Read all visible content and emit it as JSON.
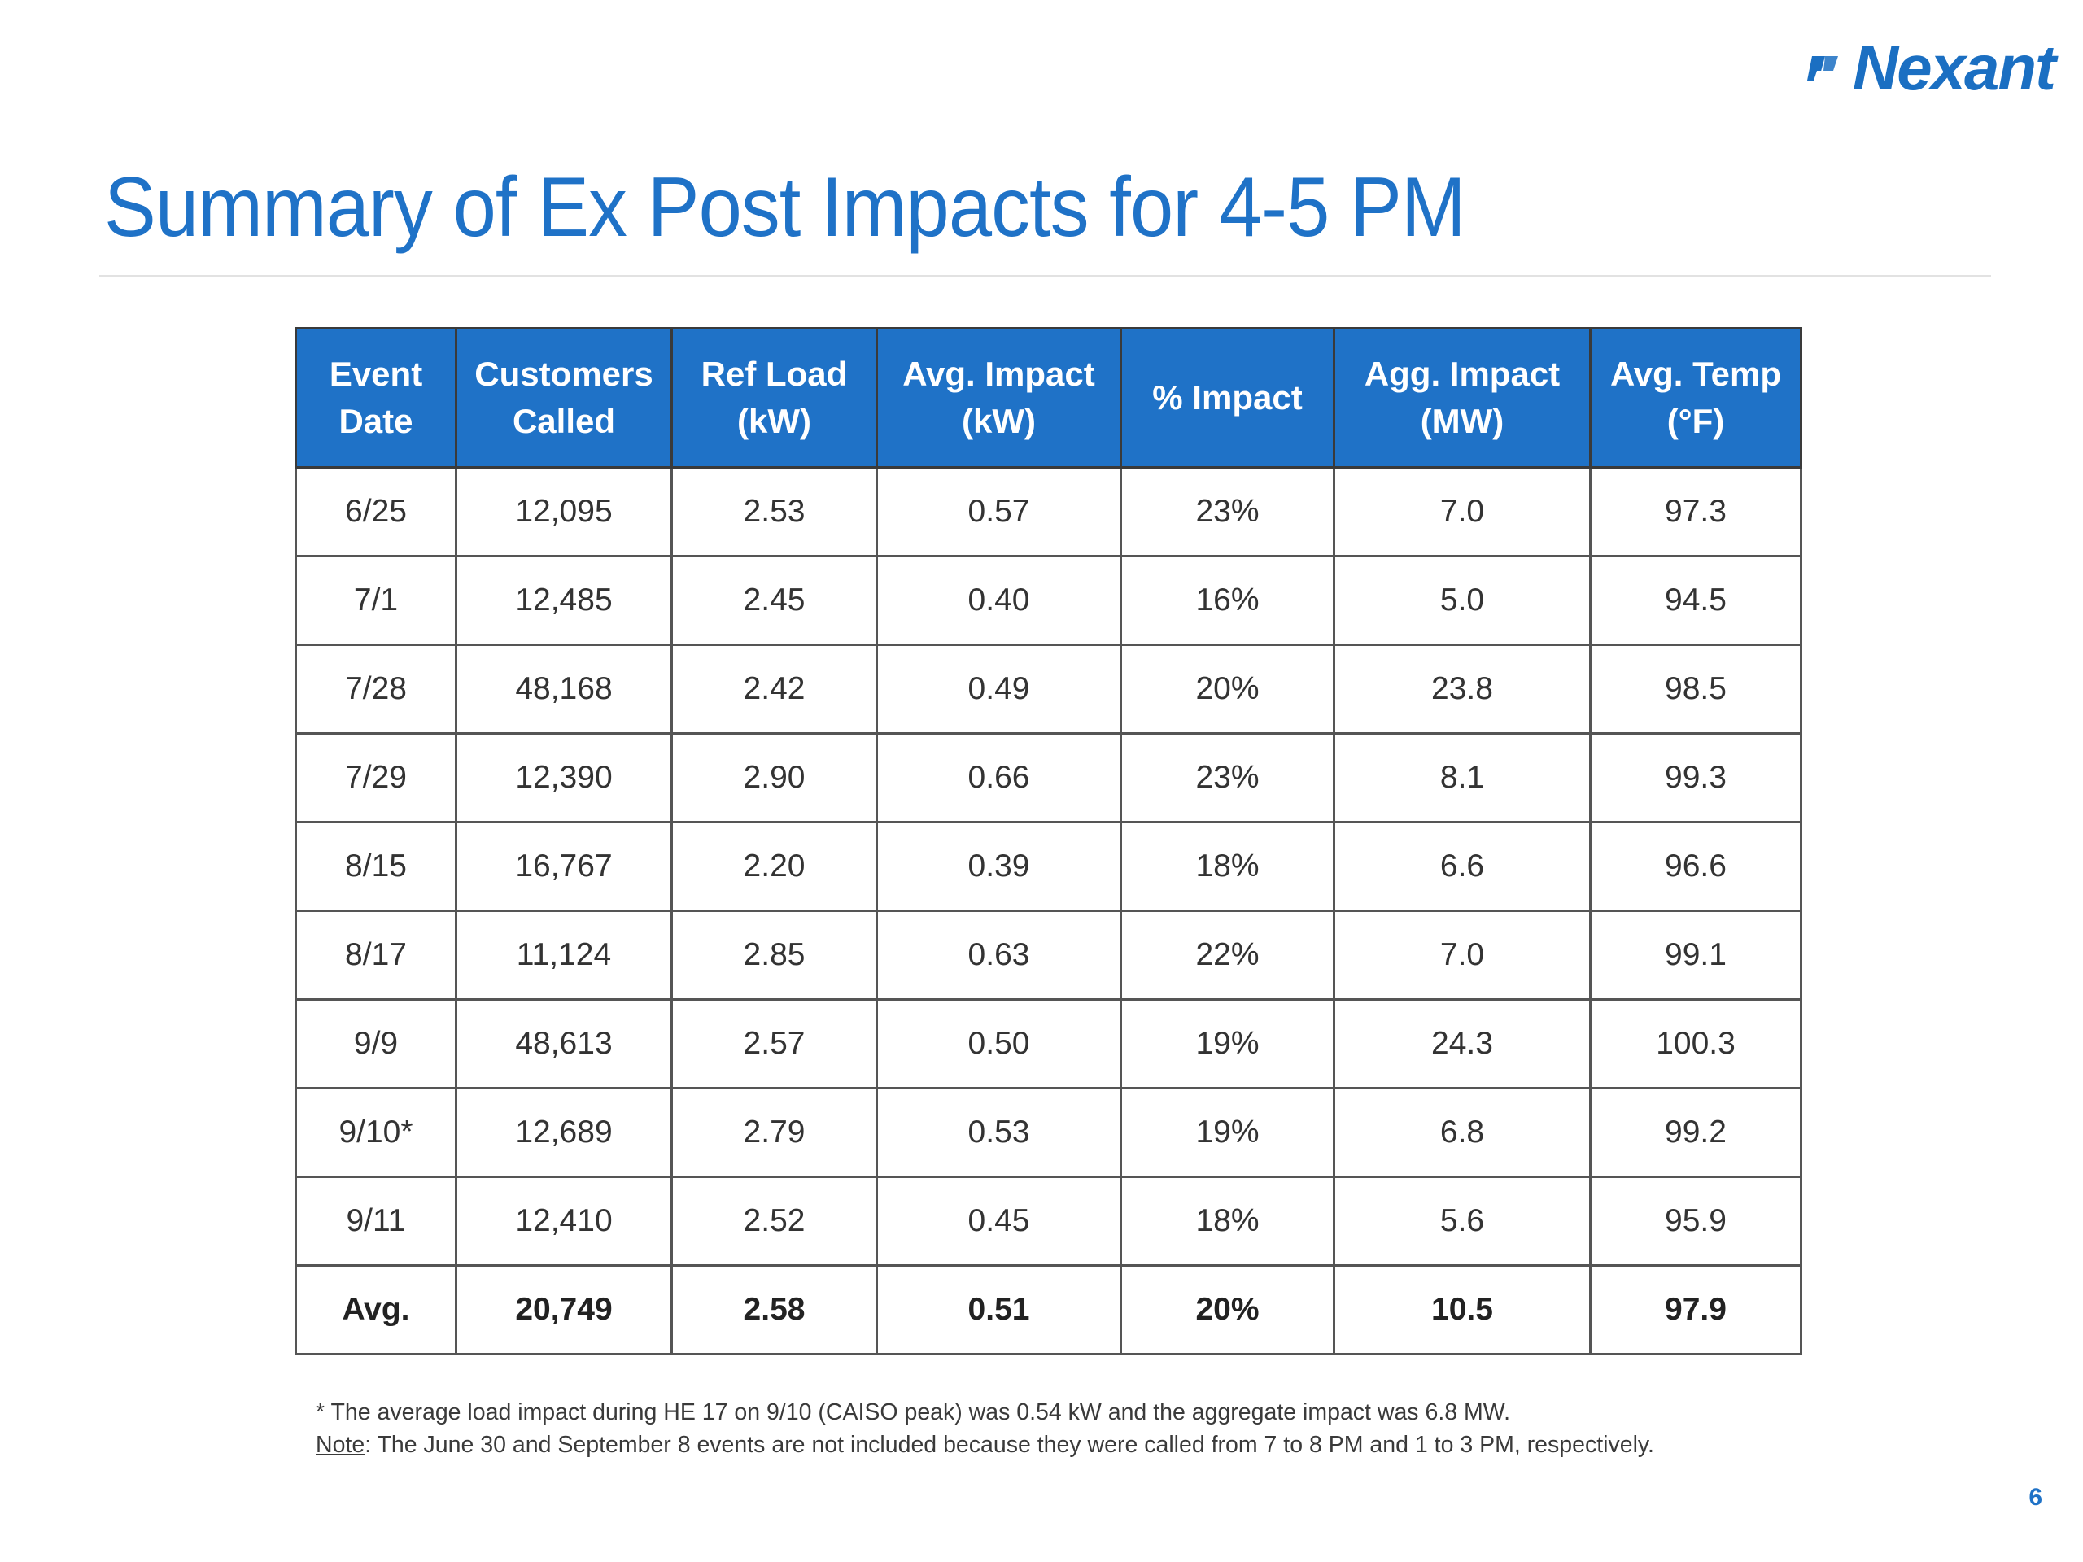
{
  "logo": {
    "text": "Nexant"
  },
  "slide": {
    "title": "Summary of Ex Post Impacts for 4-5 PM",
    "page_number": "6"
  },
  "table": {
    "headers": [
      [
        "Event",
        "Date"
      ],
      [
        "Customers",
        "Called"
      ],
      [
        "Ref Load",
        "(kW)"
      ],
      [
        "Avg. Impact",
        "(kW)"
      ],
      [
        "% Impact"
      ],
      [
        "Agg. Impact",
        "(MW)"
      ],
      [
        "Avg. Temp",
        "(°F)"
      ]
    ],
    "rows": [
      [
        "6/25",
        "12,095",
        "2.53",
        "0.57",
        "23%",
        "7.0",
        "97.3"
      ],
      [
        "7/1",
        "12,485",
        "2.45",
        "0.40",
        "16%",
        "5.0",
        "94.5"
      ],
      [
        "7/28",
        "48,168",
        "2.42",
        "0.49",
        "20%",
        "23.8",
        "98.5"
      ],
      [
        "7/29",
        "12,390",
        "2.90",
        "0.66",
        "23%",
        "8.1",
        "99.3"
      ],
      [
        "8/15",
        "16,767",
        "2.20",
        "0.39",
        "18%",
        "6.6",
        "96.6"
      ],
      [
        "8/17",
        "11,124",
        "2.85",
        "0.63",
        "22%",
        "7.0",
        "99.1"
      ],
      [
        "9/9",
        "48,613",
        "2.57",
        "0.50",
        "19%",
        "24.3",
        "100.3"
      ],
      [
        "9/10*",
        "12,689",
        "2.79",
        "0.53",
        "19%",
        "6.8",
        "99.2"
      ],
      [
        "9/11",
        "12,410",
        "2.52",
        "0.45",
        "18%",
        "5.6",
        "95.9"
      ]
    ],
    "summary_row": [
      "Avg.",
      "20,749",
      "2.58",
      "0.51",
      "20%",
      "10.5",
      "97.9"
    ]
  },
  "notes": {
    "footnote": "* The average load impact during HE 17 on 9/10 (CAISO peak) was 0.54 kW and the aggregate impact was 6.8 MW.",
    "note_label": "Note",
    "note_text": ": The June 30 and September 8 events are not included because they were called from 7 to 8 PM and 1 to 3 PM, respectively."
  },
  "colors": {
    "brand_blue": "#1f72c7",
    "header_text": "#ffffff",
    "grid": "#555555"
  }
}
